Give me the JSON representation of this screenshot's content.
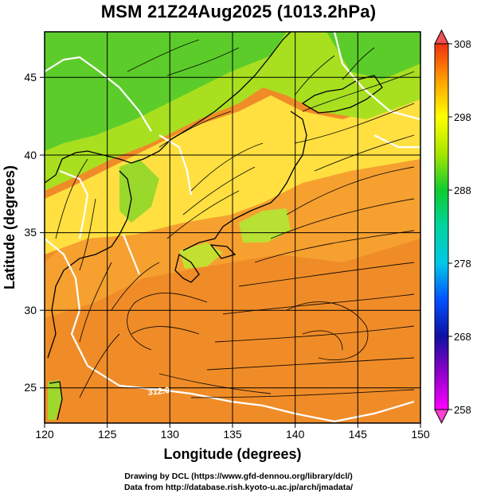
{
  "title": "MSM 21Z24Aug2025 (1013.2hPa)",
  "map": {
    "xlabel": "Longitude (degrees)",
    "ylabel": "Latitude  (degrees)",
    "xticks": [
      "120",
      "125",
      "130",
      "135",
      "140",
      "145",
      "150"
    ],
    "yticks": [
      "25",
      "30",
      "35",
      "40",
      "45"
    ],
    "lon_range": [
      120,
      150
    ],
    "lat_range": [
      22.4,
      47.6
    ],
    "contour_label": "312.0"
  },
  "colorbar": {
    "ticks": [
      "308",
      "298",
      "288",
      "278",
      "268",
      "258"
    ],
    "range": [
      258,
      308
    ],
    "colors": [
      "#f0f",
      "#1010a0",
      "#0050ff",
      "#00d0e0",
      "#00d050",
      "#a8e600",
      "#ffff00",
      "#ffa000",
      "#f04000"
    ]
  },
  "credits": {
    "line1": "Drawing by DCL (https://www.gfd-dennou.org/library/dcl/)",
    "line2": "Data from http://database.rish.kyoto-u.ac.jp/arch/jmadata/"
  }
}
